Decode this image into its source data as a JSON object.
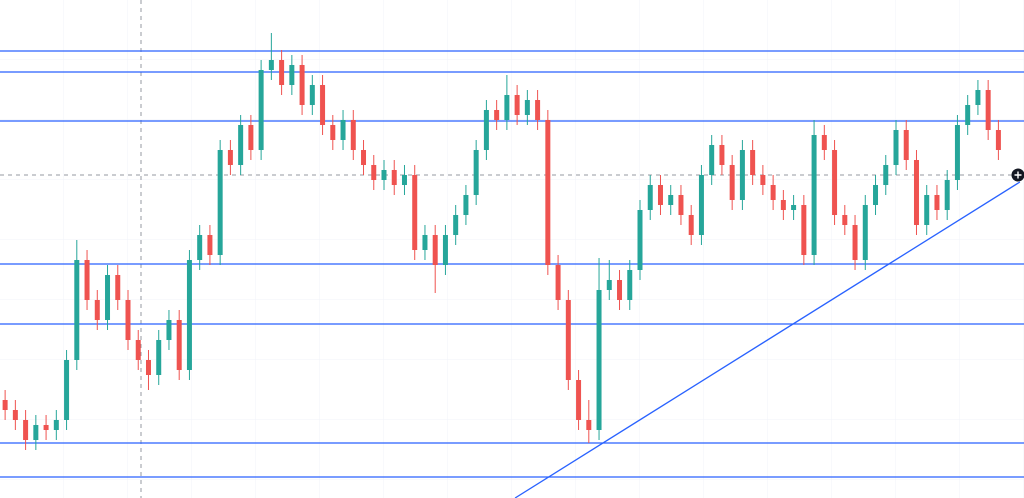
{
  "chart_data": {
    "type": "candlestick",
    "xlim": [
      -0.5,
      99.5
    ],
    "ylim": [
      0,
      498
    ],
    "up_color": "#26a69a",
    "down_color": "#ef5350",
    "line_color": "#2962ff",
    "open": [
      98,
      88,
      78,
      58,
      73,
      68,
      78,
      138,
      238,
      198,
      178,
      223,
      198,
      158,
      138,
      123,
      158,
      178,
      128,
      238,
      263,
      243,
      348,
      333,
      373,
      348,
      428,
      438,
      413,
      433,
      393,
      413,
      373,
      358,
      378,
      348,
      333,
      318,
      328,
      313,
      323,
      248,
      263,
      233,
      263,
      283,
      303,
      348,
      388,
      378,
      403,
      383,
      398,
      378,
      233,
      198,
      118,
      78,
      68,
      208,
      218,
      198,
      228,
      288,
      313,
      293,
      303,
      283,
      263,
      323,
      353,
      333,
      298,
      348,
      323,
      313,
      298,
      288,
      293,
      243,
      363,
      348,
      283,
      273,
      238,
      293,
      313,
      333,
      368,
      338,
      273,
      303,
      288,
      318,
      373,
      393,
      408,
      368
    ],
    "high": [
      108,
      98,
      88,
      83,
      83,
      88,
      148,
      258,
      248,
      208,
      233,
      233,
      208,
      168,
      148,
      168,
      188,
      188,
      248,
      273,
      273,
      358,
      358,
      383,
      383,
      438,
      465,
      448,
      443,
      443,
      423,
      423,
      383,
      388,
      388,
      358,
      343,
      338,
      338,
      333,
      333,
      273,
      273,
      273,
      293,
      313,
      358,
      398,
      398,
      423,
      413,
      408,
      408,
      388,
      243,
      208,
      128,
      98,
      240,
      238,
      228,
      238,
      298,
      323,
      323,
      313,
      313,
      293,
      333,
      363,
      363,
      343,
      358,
      358,
      333,
      323,
      308,
      303,
      303,
      378,
      373,
      358,
      293,
      283,
      303,
      323,
      343,
      378,
      378,
      348,
      313,
      313,
      328,
      383,
      403,
      418,
      418,
      378
    ],
    "low": [
      78,
      68,
      48,
      48,
      58,
      58,
      68,
      128,
      188,
      168,
      168,
      188,
      148,
      128,
      108,
      113,
      148,
      118,
      118,
      228,
      233,
      233,
      323,
      323,
      338,
      338,
      418,
      403,
      403,
      383,
      383,
      363,
      348,
      348,
      338,
      323,
      308,
      308,
      303,
      303,
      238,
      238,
      205,
      223,
      253,
      273,
      293,
      338,
      368,
      368,
      373,
      373,
      368,
      223,
      188,
      108,
      68,
      55,
      58,
      198,
      188,
      188,
      218,
      278,
      283,
      283,
      273,
      253,
      253,
      313,
      323,
      288,
      288,
      313,
      303,
      288,
      278,
      278,
      233,
      233,
      338,
      273,
      263,
      228,
      228,
      283,
      303,
      323,
      328,
      263,
      263,
      278,
      278,
      308,
      363,
      383,
      358,
      338
    ],
    "close": [
      88,
      78,
      58,
      73,
      68,
      78,
      138,
      238,
      198,
      178,
      223,
      198,
      158,
      138,
      123,
      158,
      178,
      128,
      238,
      263,
      243,
      348,
      333,
      373,
      348,
      428,
      438,
      413,
      433,
      393,
      413,
      373,
      358,
      378,
      348,
      333,
      318,
      328,
      313,
      323,
      248,
      263,
      233,
      263,
      283,
      303,
      348,
      388,
      378,
      403,
      383,
      398,
      378,
      233,
      198,
      118,
      78,
      68,
      208,
      218,
      198,
      228,
      288,
      313,
      293,
      303,
      283,
      263,
      323,
      353,
      333,
      298,
      348,
      323,
      313,
      298,
      288,
      293,
      243,
      363,
      348,
      283,
      273,
      238,
      293,
      313,
      333,
      368,
      338,
      273,
      303,
      288,
      318,
      373,
      393,
      408,
      368,
      348
    ],
    "levels": [
      447,
      426,
      377,
      234,
      174,
      55,
      21
    ],
    "trendline": {
      "x": [
        49.8,
        99.1
      ],
      "y": [
        0,
        316
      ]
    }
  }
}
